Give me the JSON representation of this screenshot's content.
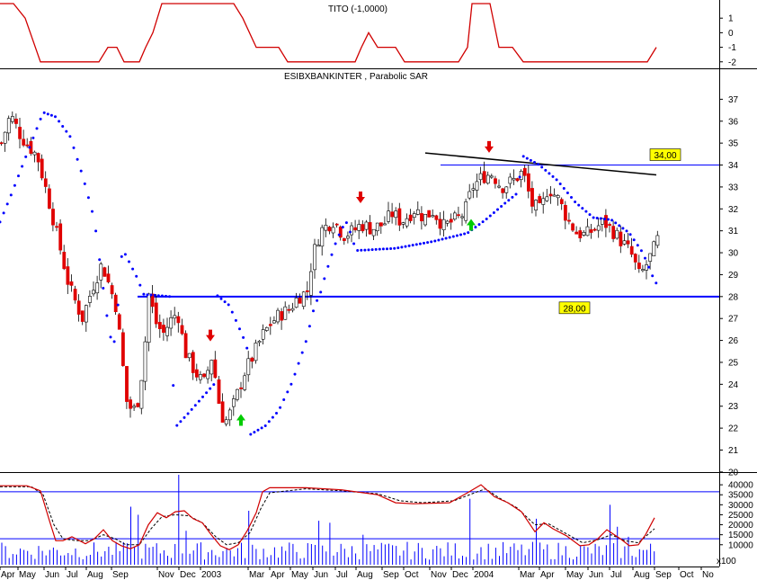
{
  "indicator_title": "TITO (-1,0000)",
  "main_title": "ESIBXBANKINTER , Parabolic SAR",
  "price_labels": {
    "resistance": "34,00",
    "support": "28,00"
  },
  "volume_multiplier_label": "x100",
  "colors": {
    "up": "#ffffff",
    "down": "#e00000",
    "sar": "#0000ff",
    "hline": "#0000ff",
    "trend": "#000000",
    "indicator": "#d00000",
    "label_bg": "#ffff00",
    "arrow_down": "#e00000",
    "arrow_up": "#00cc00"
  },
  "chart_data": [
    {
      "type": "line",
      "panel": "indicator",
      "title": "TITO (-1,0000)",
      "ylim": [
        -2.2,
        2.0
      ],
      "yticks": [
        "1",
        "0",
        "-1",
        "-2"
      ],
      "ytick_values": [
        1,
        0,
        -1,
        -2
      ],
      "series": [
        {
          "values": [
            [
              0,
              2
            ],
            [
              15,
              2
            ],
            [
              28,
              1
            ],
            [
              45,
              -2
            ],
            [
              110,
              -2
            ],
            [
              120,
              -1
            ],
            [
              130,
              -1
            ],
            [
              138,
              -2
            ],
            [
              155,
              -2
            ],
            [
              162,
              -1
            ],
            [
              170,
              0
            ],
            [
              180,
              2
            ],
            [
              260,
              2
            ],
            [
              270,
              1
            ],
            [
              285,
              -1
            ],
            [
              310,
              -1
            ],
            [
              320,
              -2
            ],
            [
              395,
              -2
            ],
            [
              402,
              -1
            ],
            [
              410,
              0
            ],
            [
              420,
              -1
            ],
            [
              440,
              -1
            ],
            [
              450,
              -2
            ],
            [
              510,
              -2
            ],
            [
              520,
              -1
            ],
            [
              525,
              2
            ],
            [
              545,
              2
            ],
            [
              555,
              -1
            ],
            [
              570,
              -1
            ],
            [
              582,
              -2
            ],
            [
              720,
              -2
            ],
            [
              730,
              -1
            ]
          ]
        }
      ]
    },
    {
      "type": "candlestick",
      "panel": "price",
      "title": "ESIBXBANKINTER , Parabolic SAR",
      "ylim": [
        20.2,
        38
      ],
      "yticks": [
        "37",
        "36",
        "35",
        "34",
        "33",
        "32",
        "31",
        "30",
        "29",
        "28",
        "27",
        "26",
        "25",
        "24",
        "23",
        "22",
        "21",
        "20"
      ],
      "ytick_values": [
        37,
        36,
        35,
        34,
        33,
        32,
        31,
        30,
        29,
        28,
        27,
        26,
        25,
        24,
        23,
        22,
        21,
        20
      ],
      "hlines": [
        {
          "value": 34.0,
          "label": "34,00"
        },
        {
          "value": 28.0,
          "label": "28,00"
        }
      ],
      "trendline": [
        [
          473,
          34.55
        ],
        [
          730,
          33.55
        ]
      ],
      "anchors": [
        [
          0,
          35.0
        ],
        [
          10,
          36.3
        ],
        [
          22,
          35.3
        ],
        [
          40,
          34.4
        ],
        [
          52,
          32.5
        ],
        [
          62,
          30.8
        ],
        [
          75,
          28.5
        ],
        [
          90,
          27.0
        ],
        [
          102,
          28.5
        ],
        [
          112,
          29.5
        ],
        [
          128,
          27.5
        ],
        [
          140,
          23.0
        ],
        [
          150,
          22.8
        ],
        [
          158,
          25.0
        ],
        [
          164,
          28.1
        ],
        [
          172,
          26.8
        ],
        [
          180,
          26.3
        ],
        [
          188,
          26.9
        ],
        [
          196,
          27.3
        ],
        [
          204,
          25.5
        ],
        [
          215,
          24.6
        ],
        [
          225,
          24.0
        ],
        [
          235,
          25.4
        ],
        [
          240,
          23.5
        ],
        [
          248,
          22.2
        ],
        [
          256,
          22.8
        ],
        [
          262,
          23.5
        ],
        [
          270,
          24.5
        ],
        [
          280,
          25.3
        ],
        [
          290,
          26.2
        ],
        [
          300,
          26.8
        ],
        [
          310,
          27.2
        ],
        [
          320,
          27.4
        ],
        [
          330,
          28.0
        ],
        [
          340,
          28.2
        ],
        [
          346,
          29.8
        ],
        [
          355,
          31.0
        ],
        [
          370,
          31.5
        ],
        [
          380,
          30.8
        ],
        [
          392,
          31.0
        ],
        [
          400,
          31.3
        ],
        [
          412,
          31.1
        ],
        [
          425,
          31.3
        ],
        [
          435,
          31.8
        ],
        [
          445,
          31.4
        ],
        [
          460,
          32.0
        ],
        [
          470,
          31.6
        ],
        [
          480,
          31.9
        ],
        [
          492,
          31.2
        ],
        [
          505,
          31.5
        ],
        [
          515,
          31.8
        ],
        [
          524,
          33.0
        ],
        [
          536,
          33.5
        ],
        [
          546,
          33.6
        ],
        [
          556,
          33.0
        ],
        [
          570,
          33.3
        ],
        [
          580,
          33.7
        ],
        [
          590,
          32.2
        ],
        [
          600,
          31.9
        ],
        [
          608,
          33.0
        ],
        [
          620,
          32.4
        ],
        [
          630,
          31.5
        ],
        [
          640,
          30.9
        ],
        [
          650,
          30.8
        ],
        [
          660,
          31.1
        ],
        [
          670,
          31.4
        ],
        [
          680,
          31.0
        ],
        [
          690,
          30.5
        ],
        [
          700,
          30.0
        ],
        [
          710,
          28.9
        ],
        [
          718,
          29.5
        ],
        [
          724,
          30.0
        ],
        [
          730,
          30.6
        ]
      ],
      "sar_anchors": [
        [
          0,
          31.4
        ],
        [
          12,
          32.6
        ],
        [
          28,
          34.3
        ],
        [
          48,
          36.4
        ],
        [
          62,
          36.2
        ],
        [
          78,
          35.3
        ],
        [
          92,
          33.5
        ],
        [
          105,
          31.5
        ],
        [
          116,
          28.0
        ],
        [
          122,
          26.2
        ],
        [
          128,
          25.9
        ],
        [
          136,
          30.2
        ],
        [
          152,
          28.9
        ],
        [
          160,
          28.1
        ],
        [
          190,
          28.0
        ],
        [
          194,
          22.0
        ],
        [
          210,
          22.7
        ],
        [
          225,
          23.4
        ],
        [
          238,
          24.0
        ],
        [
          240,
          28.1
        ],
        [
          255,
          27.6
        ],
        [
          270,
          26.2
        ],
        [
          276,
          25.5
        ],
        [
          278,
          21.7
        ],
        [
          295,
          22.1
        ],
        [
          310,
          22.8
        ],
        [
          325,
          24.1
        ],
        [
          340,
          25.9
        ],
        [
          350,
          27.6
        ],
        [
          356,
          28.1
        ],
        [
          362,
          29.0
        ],
        [
          372,
          30.3
        ],
        [
          380,
          31.1
        ],
        [
          386,
          31.4
        ],
        [
          396,
          30.1
        ],
        [
          440,
          30.2
        ],
        [
          480,
          30.5
        ],
        [
          520,
          30.9
        ],
        [
          540,
          31.5
        ],
        [
          560,
          32.2
        ],
        [
          575,
          32.7
        ],
        [
          582,
          34.4
        ],
        [
          600,
          34.0
        ],
        [
          620,
          33.3
        ],
        [
          640,
          32.3
        ],
        [
          660,
          31.6
        ],
        [
          680,
          31.5
        ],
        [
          700,
          30.9
        ],
        [
          715,
          30.0
        ],
        [
          725,
          29.0
        ],
        [
          730,
          28.6
        ]
      ],
      "arrows": [
        {
          "dir": "down",
          "x": 234,
          "value": 26.0
        },
        {
          "dir": "up",
          "x": 268,
          "value": 22.6
        },
        {
          "dir": "down",
          "x": 401,
          "value": 32.3
        },
        {
          "dir": "up",
          "x": 524,
          "value": 31.5
        },
        {
          "dir": "down",
          "x": 544,
          "value": 34.6
        }
      ]
    },
    {
      "type": "bar",
      "panel": "volume",
      "ylim": [
        0,
        45000
      ],
      "yticks": [
        "40000",
        "35000",
        "30000",
        "25000",
        "20000",
        "15000",
        "10000"
      ],
      "ytick_values": [
        40000,
        35000,
        30000,
        25000,
        20000,
        15000,
        10000
      ],
      "unit_label": "x100",
      "hlines": [
        36500,
        13000
      ],
      "spikes": [
        [
          147,
          29000
        ],
        [
          153,
          25000
        ],
        [
          199,
          45000
        ],
        [
          205,
          17000
        ],
        [
          275,
          27000
        ],
        [
          354,
          22000
        ],
        [
          365,
          21000
        ],
        [
          405,
          15000
        ],
        [
          522,
          33000
        ],
        [
          595,
          23000
        ],
        [
          680,
          30000
        ],
        [
          685,
          19000
        ],
        [
          700,
          14000
        ]
      ],
      "osc_solid": [
        [
          0,
          39500
        ],
        [
          30,
          39500
        ],
        [
          45,
          37000
        ],
        [
          55,
          22000
        ],
        [
          62,
          12000
        ],
        [
          70,
          12000
        ],
        [
          80,
          14000
        ],
        [
          95,
          10500
        ],
        [
          105,
          13000
        ],
        [
          115,
          17500
        ],
        [
          125,
          12000
        ],
        [
          135,
          9500
        ],
        [
          145,
          8000
        ],
        [
          155,
          10000
        ],
        [
          165,
          20000
        ],
        [
          175,
          26000
        ],
        [
          185,
          23500
        ],
        [
          195,
          26500
        ],
        [
          205,
          27000
        ],
        [
          215,
          23000
        ],
        [
          225,
          21000
        ],
        [
          235,
          15000
        ],
        [
          245,
          9500
        ],
        [
          255,
          7500
        ],
        [
          265,
          10000
        ],
        [
          275,
          17000
        ],
        [
          285,
          26000
        ],
        [
          292,
          36500
        ],
        [
          300,
          38500
        ],
        [
          340,
          38500
        ],
        [
          380,
          37500
        ],
        [
          420,
          35000
        ],
        [
          440,
          31000
        ],
        [
          460,
          30500
        ],
        [
          500,
          31000
        ],
        [
          520,
          36000
        ],
        [
          535,
          40000
        ],
        [
          550,
          34000
        ],
        [
          565,
          31000
        ],
        [
          580,
          26500
        ],
        [
          595,
          16500
        ],
        [
          605,
          21000
        ],
        [
          615,
          18000
        ],
        [
          630,
          14500
        ],
        [
          645,
          9500
        ],
        [
          655,
          10000
        ],
        [
          665,
          13000
        ],
        [
          675,
          17500
        ],
        [
          690,
          13000
        ],
        [
          700,
          9500
        ],
        [
          710,
          10000
        ],
        [
          718,
          15000
        ],
        [
          728,
          23500
        ]
      ],
      "osc_dashed": [
        [
          0,
          39000
        ],
        [
          35,
          39000
        ],
        [
          48,
          35000
        ],
        [
          60,
          20000
        ],
        [
          70,
          13000
        ],
        [
          85,
          12000
        ],
        [
          100,
          12000
        ],
        [
          115,
          15000
        ],
        [
          128,
          13000
        ],
        [
          140,
          10000
        ],
        [
          155,
          10000
        ],
        [
          168,
          18000
        ],
        [
          180,
          24000
        ],
        [
          195,
          25000
        ],
        [
          210,
          24500
        ],
        [
          225,
          21000
        ],
        [
          240,
          14000
        ],
        [
          252,
          10000
        ],
        [
          265,
          11000
        ],
        [
          278,
          16000
        ],
        [
          290,
          28000
        ],
        [
          300,
          36000
        ],
        [
          340,
          38000
        ],
        [
          380,
          37000
        ],
        [
          420,
          35500
        ],
        [
          445,
          32000
        ],
        [
          470,
          31000
        ],
        [
          505,
          32000
        ],
        [
          525,
          35500
        ],
        [
          540,
          38000
        ],
        [
          555,
          33500
        ],
        [
          575,
          28500
        ],
        [
          595,
          20000
        ],
        [
          610,
          20500
        ],
        [
          630,
          15500
        ],
        [
          648,
          11000
        ],
        [
          665,
          12500
        ],
        [
          680,
          15000
        ],
        [
          695,
          12000
        ],
        [
          710,
          11000
        ],
        [
          728,
          18000
        ]
      ]
    }
  ],
  "x_axis": {
    "labels": [
      "Apr",
      "May",
      "Jun",
      "Jul",
      "Aug",
      "Sep",
      "Nov",
      "Dec",
      "2003",
      "Mar",
      "Apr",
      "May",
      "Jun",
      "Jul",
      "Aug",
      "Sep",
      "Oct",
      "Nov",
      "Dec",
      "2004",
      "Mar",
      "Apr",
      "May",
      "Jun",
      "Jul",
      "Aug",
      "Sep",
      "Oct",
      "No"
    ],
    "label_x": [
      1,
      21,
      50,
      74,
      97,
      125,
      176,
      200,
      224,
      277,
      301,
      324,
      349,
      374,
      397,
      426,
      450,
      479,
      503,
      527,
      578,
      601,
      630,
      655,
      679,
      705,
      729,
      756,
      781
    ]
  }
}
